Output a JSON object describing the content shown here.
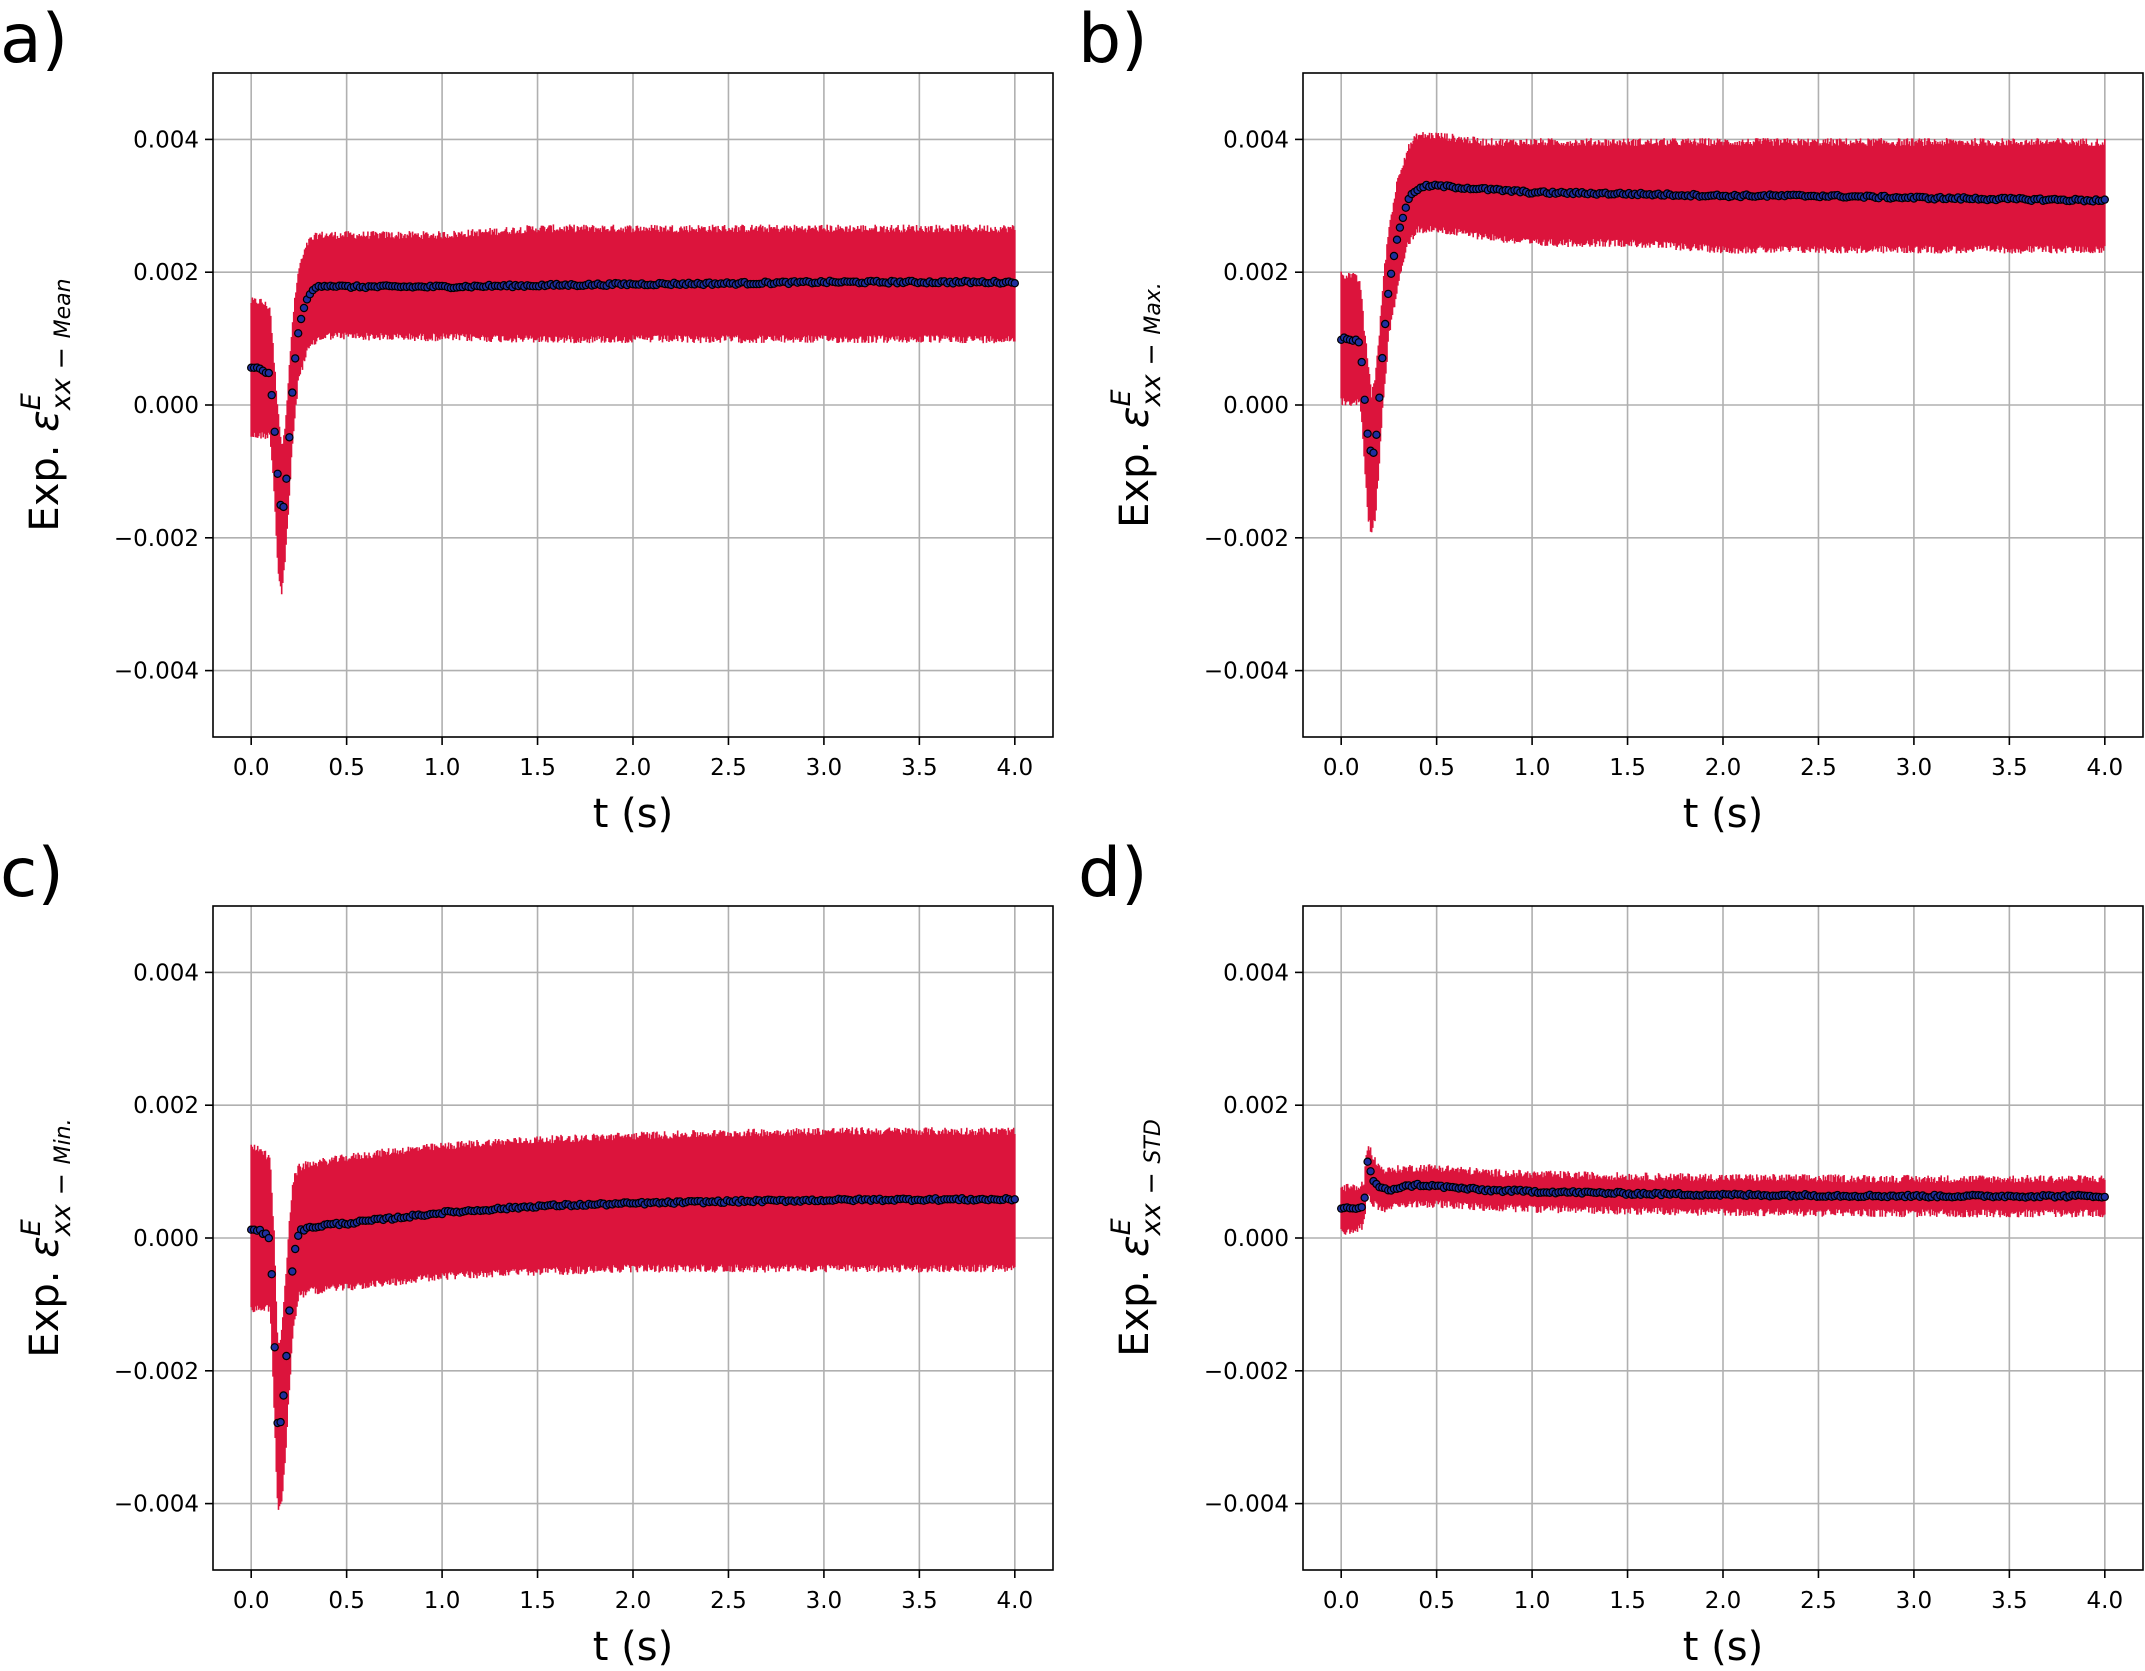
{
  "colors": {
    "band": "#dc143c",
    "marker_fill": "#1f2f9f",
    "marker_edge": "#000000",
    "grid": "#b0b0b0",
    "axis": "#000000"
  },
  "chart_data": [
    {
      "panel": "a)",
      "type": "scatter",
      "ylabel_prefix": "Exp. ",
      "ylabel_symbol": "ε",
      "ylabel_superscript": "E",
      "ylabel_subscript": "xx",
      "ylabel_minus": " − ",
      "ylabel_suffix": "Mean",
      "xlabel": "t (s)",
      "xlim": [
        -0.2,
        4.2
      ],
      "ylim": [
        -0.005,
        0.005
      ],
      "xticks": [
        0.0,
        0.5,
        1.0,
        1.5,
        2.0,
        2.5,
        3.0,
        3.5,
        4.0
      ],
      "xtick_labels": [
        "0.0",
        "0.5",
        "1.0",
        "1.5",
        "2.0",
        "2.5",
        "3.0",
        "3.5",
        "4.0"
      ],
      "yticks": [
        -0.004,
        -0.002,
        0.0,
        0.002,
        0.004
      ],
      "ytick_labels": [
        "−0.004",
        "−0.002",
        "0.000",
        "0.002",
        "0.004"
      ],
      "grid": true,
      "series": [
        {
          "name": "mean_with_band",
          "x": [
            0.0,
            0.05,
            0.1,
            0.12,
            0.14,
            0.16,
            0.18,
            0.2,
            0.22,
            0.25,
            0.3,
            0.35,
            0.4,
            0.5,
            0.75,
            1.0,
            1.5,
            2.0,
            2.5,
            3.0,
            3.5,
            4.0
          ],
          "y": [
            0.00055,
            0.00055,
            0.00045,
            -0.0003,
            -0.0011,
            -0.0017,
            -0.0013,
            -0.0005,
            0.0004,
            0.0012,
            0.00165,
            0.0018,
            0.0018,
            0.00178,
            0.00178,
            0.00178,
            0.0018,
            0.00182,
            0.00183,
            0.00185,
            0.00185,
            0.00185
          ],
          "lower": [
            -0.0004,
            -0.0004,
            -0.0004,
            -0.0012,
            -0.0024,
            -0.0028,
            -0.0022,
            -0.0013,
            -0.0004,
            0.0005,
            0.0009,
            0.00105,
            0.0011,
            0.0011,
            0.00108,
            0.00108,
            0.00105,
            0.00105,
            0.00105,
            0.00105,
            0.00105,
            0.00105
          ],
          "upper": [
            0.0015,
            0.0015,
            0.0014,
            0.0006,
            -0.0001,
            -0.0007,
            -0.0003,
            0.0005,
            0.0013,
            0.002,
            0.0024,
            0.0025,
            0.0025,
            0.0025,
            0.0025,
            0.0025,
            0.0026,
            0.0026,
            0.0026,
            0.0026,
            0.0026,
            0.0026
          ]
        }
      ]
    },
    {
      "panel": "b)",
      "type": "scatter",
      "ylabel_prefix": "Exp. ",
      "ylabel_symbol": "ε",
      "ylabel_superscript": "E",
      "ylabel_subscript": "xx",
      "ylabel_minus": " − ",
      "ylabel_suffix": "Max.",
      "xlabel": "t (s)",
      "xlim": [
        -0.2,
        4.2
      ],
      "ylim": [
        -0.005,
        0.005
      ],
      "xticks": [
        0.0,
        0.5,
        1.0,
        1.5,
        2.0,
        2.5,
        3.0,
        3.5,
        4.0
      ],
      "xtick_labels": [
        "0.0",
        "0.5",
        "1.0",
        "1.5",
        "2.0",
        "2.5",
        "3.0",
        "3.5",
        "4.0"
      ],
      "yticks": [
        -0.004,
        -0.002,
        0.0,
        0.002,
        0.004
      ],
      "ytick_labels": [
        "−0.004",
        "−0.002",
        "0.000",
        "0.002",
        "0.004"
      ],
      "grid": true,
      "series": [
        {
          "name": "max_with_band",
          "x": [
            0.0,
            0.05,
            0.1,
            0.12,
            0.14,
            0.16,
            0.18,
            0.2,
            0.22,
            0.25,
            0.3,
            0.35,
            0.4,
            0.45,
            0.5,
            0.75,
            1.0,
            1.5,
            2.0,
            2.5,
            3.0,
            3.5,
            4.0
          ],
          "y": [
            0.001,
            0.001,
            0.00095,
            0.0002,
            -0.0005,
            -0.0008,
            -0.0006,
            0.0001,
            0.0009,
            0.0018,
            0.0026,
            0.0031,
            0.00325,
            0.0033,
            0.0033,
            0.00325,
            0.0032,
            0.00318,
            0.00315,
            0.00315,
            0.00312,
            0.0031,
            0.00308
          ],
          "lower": [
            0.0001,
            0.0001,
            0.0001,
            -0.0007,
            -0.0016,
            -0.0019,
            -0.0016,
            -0.0008,
            0.0001,
            0.0011,
            0.0019,
            0.0025,
            0.0027,
            0.0027,
            0.0027,
            0.0026,
            0.0025,
            0.0025,
            0.0024,
            0.0024,
            0.0024,
            0.0024,
            0.0024
          ],
          "upper": [
            0.0019,
            0.0019,
            0.0018,
            0.0011,
            0.0006,
            0.0001,
            0.0004,
            0.001,
            0.0018,
            0.0026,
            0.0034,
            0.0038,
            0.004,
            0.004,
            0.004,
            0.0039,
            0.0039,
            0.0039,
            0.0039,
            0.0039,
            0.0039,
            0.0039,
            0.0039
          ]
        }
      ]
    },
    {
      "panel": "c)",
      "type": "scatter",
      "ylabel_prefix": "Exp. ",
      "ylabel_symbol": "ε",
      "ylabel_superscript": "E",
      "ylabel_subscript": "xx",
      "ylabel_minus": " − ",
      "ylabel_suffix": "Min.",
      "xlabel": "t (s)",
      "xlim": [
        -0.2,
        4.2
      ],
      "ylim": [
        -0.005,
        0.005
      ],
      "xticks": [
        0.0,
        0.5,
        1.0,
        1.5,
        2.0,
        2.5,
        3.0,
        3.5,
        4.0
      ],
      "xtick_labels": [
        "0.0",
        "0.5",
        "1.0",
        "1.5",
        "2.0",
        "2.5",
        "3.0",
        "3.5",
        "4.0"
      ],
      "yticks": [
        -0.004,
        -0.002,
        0.0,
        0.002,
        0.004
      ],
      "ytick_labels": [
        "−0.004",
        "−0.002",
        "0.000",
        "0.002",
        "0.004"
      ],
      "grid": true,
      "series": [
        {
          "name": "min_with_band",
          "x": [
            0.0,
            0.05,
            0.1,
            0.12,
            0.14,
            0.16,
            0.18,
            0.2,
            0.22,
            0.25,
            0.3,
            0.4,
            0.5,
            0.75,
            1.0,
            1.25,
            1.5,
            2.0,
            2.5,
            3.0,
            3.5,
            4.0
          ],
          "y": [
            0.00012,
            0.0001,
            0.0,
            -0.0014,
            -0.0029,
            -0.0027,
            -0.002,
            -0.0011,
            -0.0003,
            0.0001,
            0.00015,
            0.0002,
            0.00022,
            0.0003,
            0.00038,
            0.00043,
            0.00048,
            0.00052,
            0.00055,
            0.00057,
            0.00058,
            0.00058
          ],
          "lower": [
            -0.001,
            -0.001,
            -0.001,
            -0.0025,
            -0.0041,
            -0.0039,
            -0.0032,
            -0.0022,
            -0.0013,
            -0.0008,
            -0.00075,
            -0.0007,
            -0.00068,
            -0.0006,
            -0.00052,
            -0.00048,
            -0.00045,
            -0.0004,
            -0.0004,
            -0.0004,
            -0.0004,
            -0.0004
          ],
          "upper": [
            0.0013,
            0.0013,
            0.0011,
            0.0,
            -0.0017,
            -0.0015,
            -0.0007,
            0.0002,
            0.0008,
            0.001,
            0.00105,
            0.0011,
            0.00115,
            0.00125,
            0.00132,
            0.00138,
            0.00142,
            0.00148,
            0.00152,
            0.00155,
            0.00155,
            0.00155
          ]
        }
      ]
    },
    {
      "panel": "d)",
      "type": "scatter",
      "ylabel_prefix": "Exp. ",
      "ylabel_symbol": "ε",
      "ylabel_superscript": "E",
      "ylabel_subscript": "xx",
      "ylabel_minus": " − ",
      "ylabel_suffix": "STD",
      "xlabel": "t (s)",
      "xlim": [
        -0.2,
        4.2
      ],
      "ylim": [
        -0.005,
        0.005
      ],
      "xticks": [
        0.0,
        0.5,
        1.0,
        1.5,
        2.0,
        2.5,
        3.0,
        3.5,
        4.0
      ],
      "xtick_labels": [
        "0.0",
        "0.5",
        "1.0",
        "1.5",
        "2.0",
        "2.5",
        "3.0",
        "3.5",
        "4.0"
      ],
      "yticks": [
        -0.004,
        -0.002,
        0.0,
        0.002,
        0.004
      ],
      "ytick_labels": [
        "−0.004",
        "−0.002",
        "0.000",
        "0.002",
        "0.004"
      ],
      "grid": true,
      "series": [
        {
          "name": "std_with_band",
          "x": [
            0.0,
            0.05,
            0.1,
            0.12,
            0.14,
            0.16,
            0.2,
            0.25,
            0.3,
            0.4,
            0.5,
            0.75,
            1.0,
            1.5,
            2.0,
            2.5,
            3.0,
            3.5,
            4.0
          ],
          "y": [
            0.00045,
            0.00045,
            0.00045,
            0.0005,
            0.0012,
            0.0009,
            0.00075,
            0.00072,
            0.00076,
            0.0008,
            0.00078,
            0.00072,
            0.0007,
            0.00067,
            0.00065,
            0.00064,
            0.00063,
            0.00063,
            0.00063
          ],
          "lower": [
            0.00015,
            0.00015,
            0.0002,
            0.0003,
            0.0008,
            0.0006,
            0.0005,
            0.0005,
            0.00055,
            0.00058,
            0.00057,
            0.00052,
            0.0005,
            0.00047,
            0.00045,
            0.00044,
            0.00043,
            0.00043,
            0.00043
          ],
          "upper": [
            0.0007,
            0.0007,
            0.0007,
            0.0008,
            0.0014,
            0.0012,
            0.001,
            0.00095,
            0.00098,
            0.001,
            0.001,
            0.00093,
            0.0009,
            0.00087,
            0.00085,
            0.00084,
            0.00083,
            0.00083,
            0.00083
          ]
        }
      ]
    }
  ]
}
